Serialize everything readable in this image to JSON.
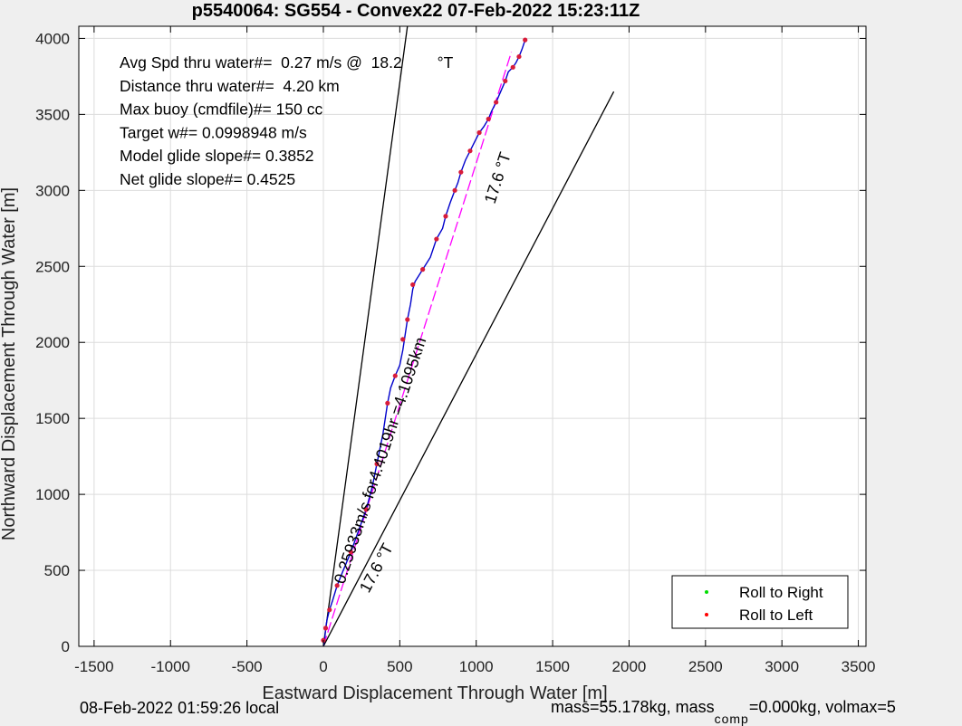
{
  "chart_data": {
    "type": "line",
    "title": "p5540064: SG554 - Convex22 07-Feb-2022 15:23:11Z",
    "xlabel": "Eastward Displacement Through Water [m]",
    "ylabel": "Northward Displacement Through Water [m]",
    "xlim": [
      -1600,
      3550
    ],
    "ylim": [
      0,
      4080
    ],
    "xticks": [
      -1500,
      -1000,
      -500,
      0,
      500,
      1000,
      1500,
      2000,
      2500,
      3000,
      3500
    ],
    "yticks": [
      0,
      500,
      1000,
      1500,
      2000,
      2500,
      3000,
      3500,
      4000
    ],
    "grid": true,
    "annotations": [
      "Avg Spd thru water#=  0.27 m/s @  18.2        °T",
      "Distance thru water#=  4.20 km",
      "Max buoy (cmdfile)#= 150 cc",
      "Target w#= 0.0998948 m/s",
      "Model glide slope#= 0.3852",
      "Net glide slope#= 0.4525"
    ],
    "line_labels": {
      "heading_upper": "17.6 °T",
      "heading_lower": "17.6 °T",
      "speed": "0.25933m/s for4.4019hr =4.1095km"
    },
    "track": {
      "x": [
        0,
        10,
        15,
        25,
        40,
        60,
        90,
        130,
        180,
        230,
        280,
        320,
        350,
        390,
        420,
        440,
        470,
        500,
        520,
        535,
        550,
        570,
        585,
        600,
        650,
        700,
        740,
        780,
        800,
        830,
        860,
        880,
        900,
        930,
        960,
        990,
        1020,
        1050,
        1080,
        1100,
        1130,
        1160,
        1190,
        1210,
        1240,
        1260,
        1280,
        1300,
        1320
      ],
      "y": [
        0,
        60,
        120,
        180,
        240,
        300,
        400,
        500,
        620,
        760,
        900,
        1050,
        1200,
        1400,
        1600,
        1700,
        1780,
        1850,
        1950,
        2050,
        2150,
        2250,
        2350,
        2400,
        2480,
        2560,
        2680,
        2750,
        2830,
        2920,
        3000,
        3050,
        3120,
        3200,
        3260,
        3320,
        3380,
        3420,
        3470,
        3520,
        3580,
        3650,
        3720,
        3780,
        3810,
        3840,
        3880,
        3930,
        3990
      ]
    },
    "dive_points": {
      "x": [
        0,
        15,
        40,
        90,
        180,
        280,
        350,
        420,
        470,
        520,
        550,
        585,
        650,
        740,
        800,
        860,
        900,
        960,
        1020,
        1080,
        1130,
        1190,
        1240,
        1280,
        1320
      ],
      "y": [
        40,
        120,
        240,
        400,
        620,
        900,
        1200,
        1600,
        1780,
        2020,
        2150,
        2380,
        2480,
        2680,
        2830,
        3000,
        3120,
        3260,
        3380,
        3470,
        3580,
        3720,
        3810,
        3880,
        3990
      ]
    },
    "reference_lines": [
      {
        "x": [
          0,
          1230
        ],
        "y": [
          0,
          3910
        ],
        "color": "#ff00ff",
        "style": "dashed"
      },
      {
        "x": [
          0,
          550
        ],
        "y": [
          0,
          4080
        ],
        "color": "#000000",
        "style": "solid"
      },
      {
        "x": [
          0,
          1900
        ],
        "y": [
          0,
          3650
        ],
        "color": "#000000",
        "style": "solid"
      }
    ],
    "legend": {
      "placement": "bottom-right",
      "entries": [
        {
          "label": "Roll to Right",
          "color": "#00dd00"
        },
        {
          "label": "Roll to Left",
          "color": "#ff0000"
        }
      ]
    }
  },
  "footer": {
    "local_time": "08-Feb-2022 01:59:26 local",
    "mass_text": "mass=55.178kg, mass",
    "mass_sub": "comp",
    "mass_tail": "=0.000kg, volmax=5"
  },
  "colors": {
    "track": "#0000cc",
    "points": "#d81b3a",
    "fit": "#ff00ff",
    "grid": "#dcdcdc"
  }
}
